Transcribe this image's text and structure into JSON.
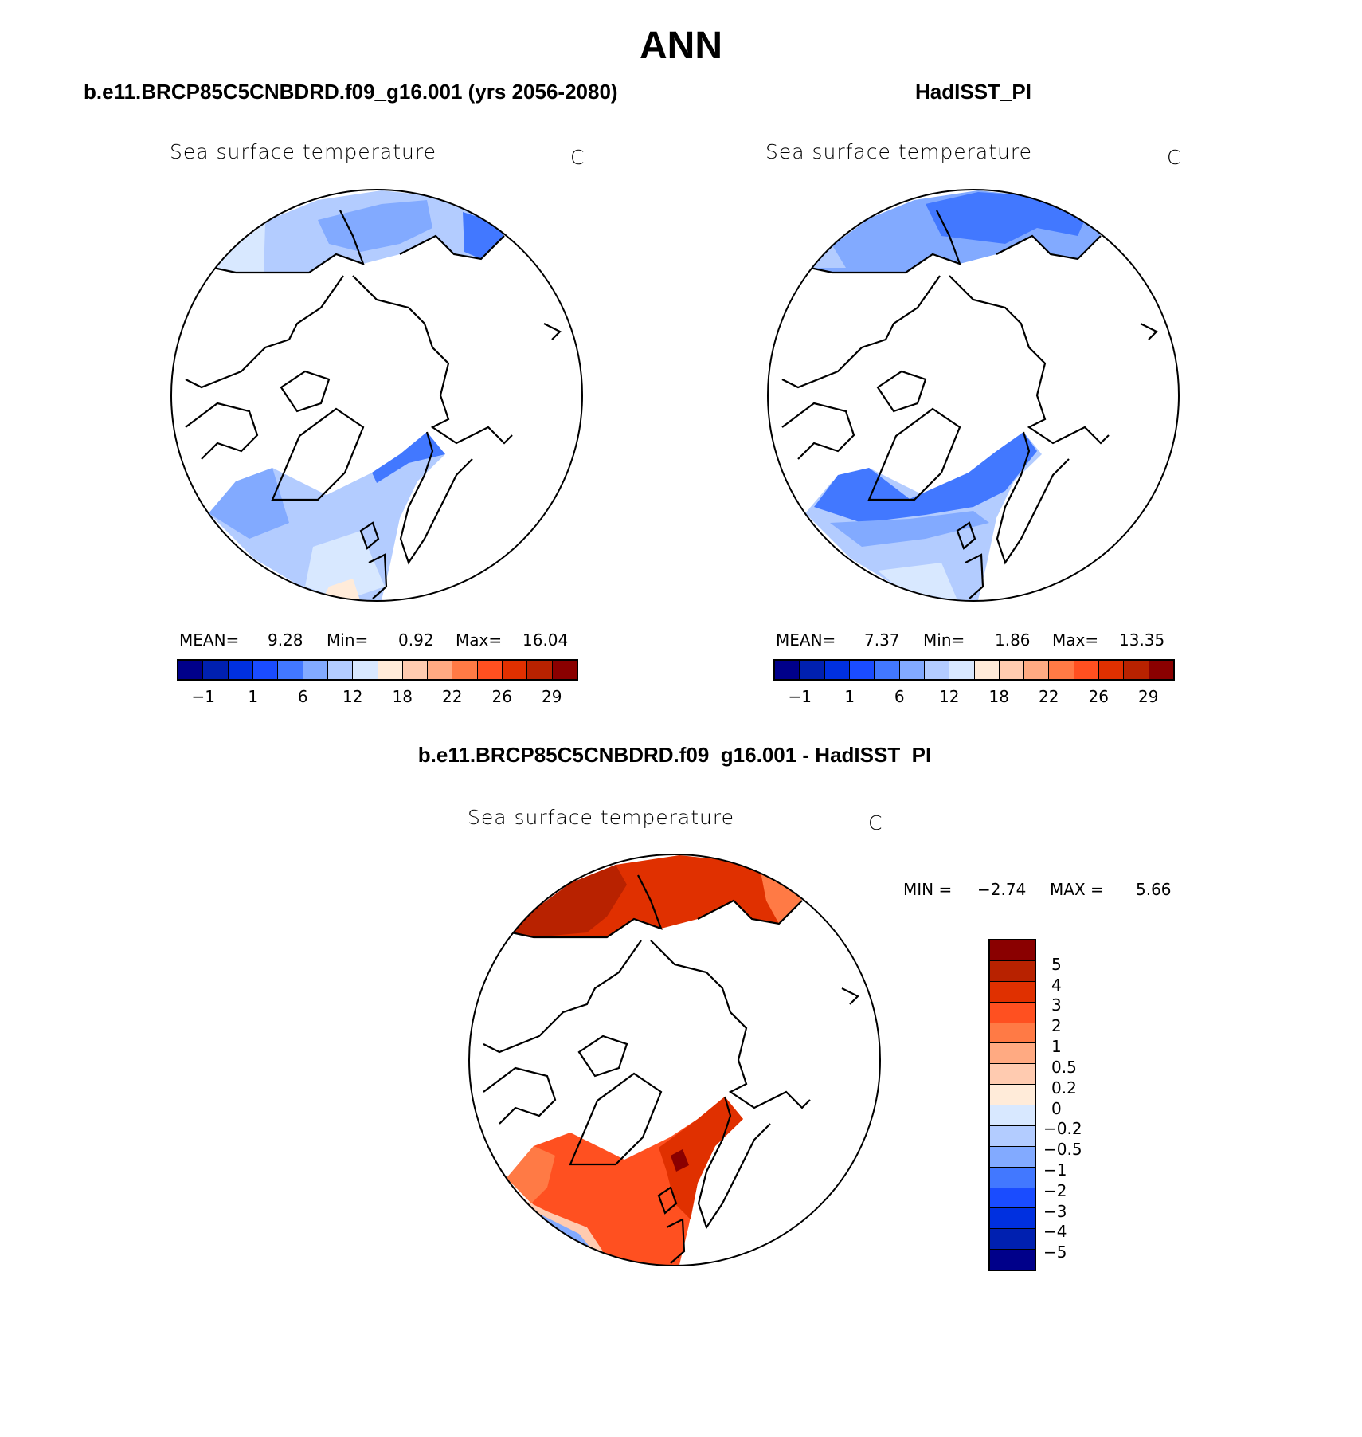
{
  "title": "ANN",
  "panels": [
    {
      "subtitle": "b.e11.BRCP85C5CNBDRD.f09_g16.001 (yrs 2056-2080)",
      "variable": "Sea surface temperature",
      "units": "C",
      "stats": {
        "mean_label": "MEAN=",
        "mean": "9.28",
        "min_label": "Min=",
        "min": "0.92",
        "max_label": "Max=",
        "max": "16.04"
      }
    },
    {
      "subtitle": "HadISST_PI",
      "variable": "Sea surface temperature",
      "units": "C",
      "stats": {
        "mean_label": "MEAN=",
        "mean": "7.37",
        "min_label": "Min=",
        "min": "1.86",
        "max_label": "Max=",
        "max": "13.35"
      }
    }
  ],
  "diff": {
    "subtitle": "b.e11.BRCP85C5CNBDRD.f09_g16.001 - HadISST_PI",
    "variable": "Sea surface temperature",
    "units": "C",
    "stats": {
      "min_label": "MIN =",
      "min": "−2.74",
      "max_label": "MAX =",
      "max": "5.66"
    }
  },
  "colorbar": {
    "colors": [
      "#00008a",
      "#0020b0",
      "#0030e0",
      "#1a4cff",
      "#4278ff",
      "#82aaff",
      "#b3ccff",
      "#d8e8ff",
      "#ffebd9",
      "#ffcbb0",
      "#ffaa82",
      "#ff7a45",
      "#ff5020",
      "#e03000",
      "#b82200",
      "#8a0000"
    ],
    "abs_labels": [
      "−1",
      "1",
      "6",
      "12",
      "18",
      "22",
      "26",
      "29"
    ],
    "diff_labels": [
      "5",
      "4",
      "3",
      "2",
      "1",
      "0.5",
      "0.2",
      "0",
      "−0.2",
      "−0.5",
      "−1",
      "−2",
      "−3",
      "−4",
      "−5"
    ]
  }
}
